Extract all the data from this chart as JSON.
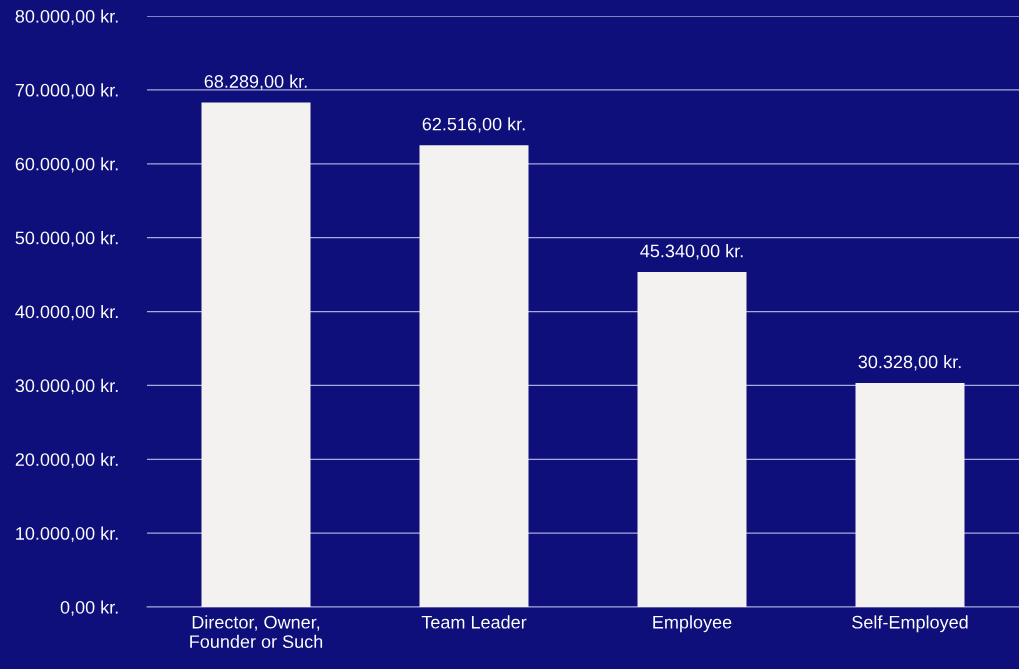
{
  "chart_data": {
    "type": "bar",
    "categories": [
      "Director, Owner,\nFounder or Such",
      "Team Leader",
      "Employee",
      "Self-Employed"
    ],
    "values": [
      68289,
      62516,
      45340,
      30328
    ],
    "value_labels": [
      "68.289,00 kr.",
      "62.516,00 kr.",
      "45.340,00 kr.",
      "30.328,00 kr."
    ],
    "color": "#f4f2f0",
    "ylim": [
      0,
      80000
    ],
    "yticks": [
      {
        "value": 0,
        "label": "0,00 kr."
      },
      {
        "value": 10000,
        "label": "10.000,00 kr."
      },
      {
        "value": 20000,
        "label": "20.000,00 kr."
      },
      {
        "value": 30000,
        "label": "30.000,00 kr."
      },
      {
        "value": 40000,
        "label": "40.000,00 kr."
      },
      {
        "value": 50000,
        "label": "50.000,00 kr."
      },
      {
        "value": 60000,
        "label": "60.000,00 kr."
      },
      {
        "value": 70000,
        "label": "70.000,00 kr."
      },
      {
        "value": 80000,
        "label": "80.000,00 kr."
      }
    ],
    "grid": "y",
    "legend": false
  }
}
